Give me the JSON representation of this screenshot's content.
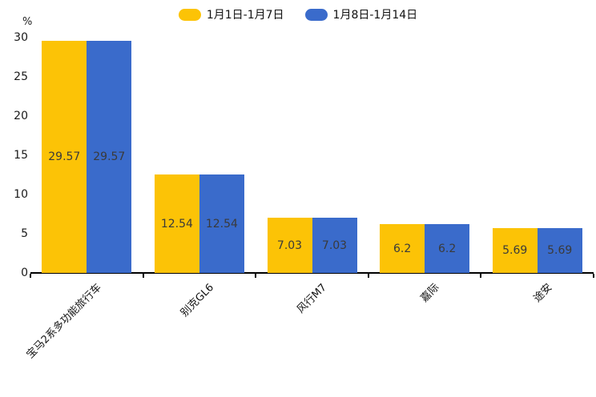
{
  "chart_data": {
    "type": "bar",
    "title": "",
    "categories": [
      "宝马2系多功能旅行车",
      "别克GL6",
      "风行M7",
      "嘉际",
      "途安"
    ],
    "series": [
      {
        "name": "1月1日-1月7日",
        "color": "#FCC306",
        "values": [
          29.57,
          12.54,
          7.03,
          6.2,
          5.69
        ]
      },
      {
        "name": "1月8日-1月14日",
        "color": "#3A6BCB",
        "values": [
          29.57,
          12.54,
          7.03,
          6.2,
          5.69
        ]
      }
    ],
    "xlabel": "",
    "ylabel": "%",
    "yticks": [
      0,
      5,
      10,
      15,
      20,
      25,
      30
    ],
    "ylim": [
      0,
      30
    ],
    "grid": false,
    "legend_position": "top-center",
    "value_labels": true,
    "bar_value_label_color": "#3a3a3a",
    "axis_color": "#000000"
  },
  "y_axis": {
    "unit_label": "%"
  }
}
